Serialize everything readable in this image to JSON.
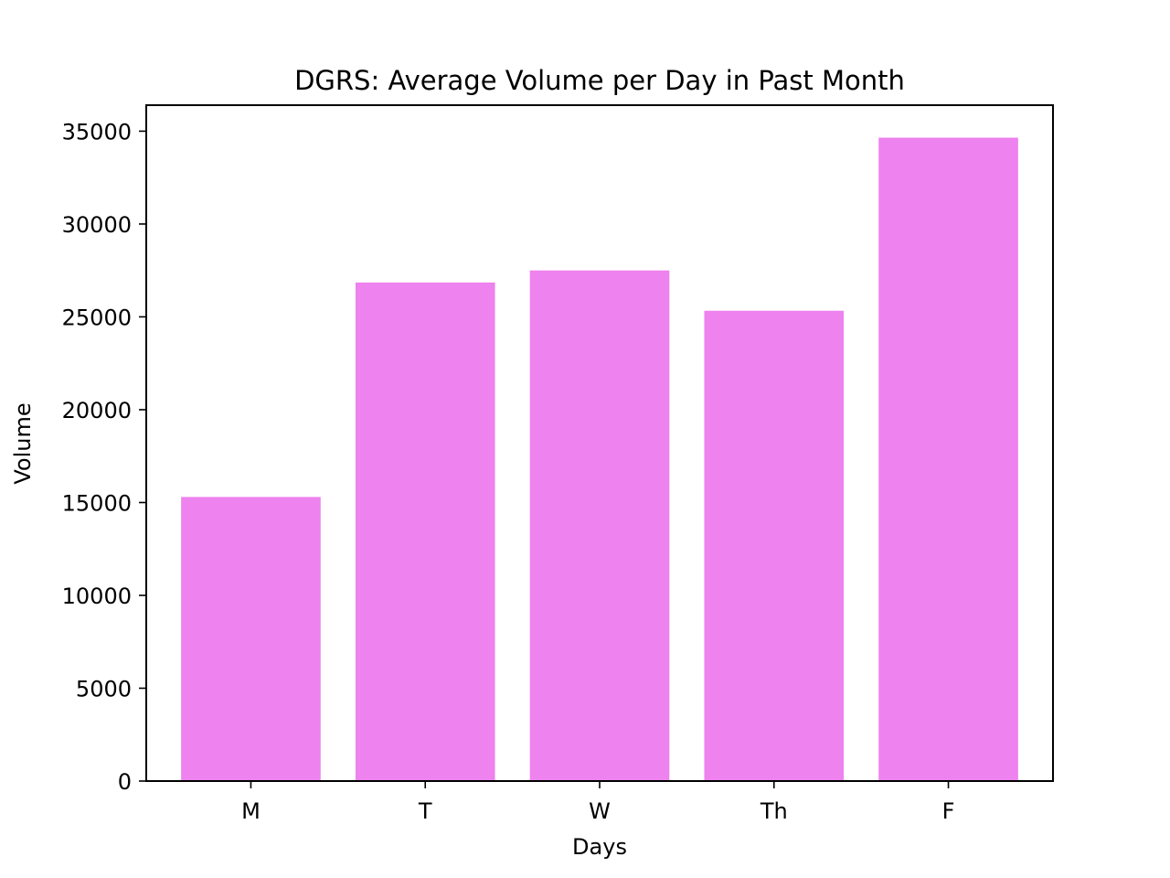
{
  "chart_data": {
    "type": "bar",
    "title": "DGRS: Average Volume per Day in Past Month",
    "xlabel": "Days",
    "ylabel": "Volume",
    "categories": [
      "M",
      "T",
      "W",
      "Th",
      "F"
    ],
    "values": [
      15300,
      26850,
      27500,
      25330,
      34650
    ],
    "ylim": [
      0,
      36400
    ],
    "yticks": [
      0,
      5000,
      10000,
      15000,
      20000,
      25000,
      30000,
      35000
    ],
    "ytick_labels": [
      "0",
      "5000",
      "10000",
      "15000",
      "20000",
      "25000",
      "30000",
      "35000"
    ],
    "bar_color": "#ee82ee",
    "grid": false,
    "legend": "none"
  }
}
